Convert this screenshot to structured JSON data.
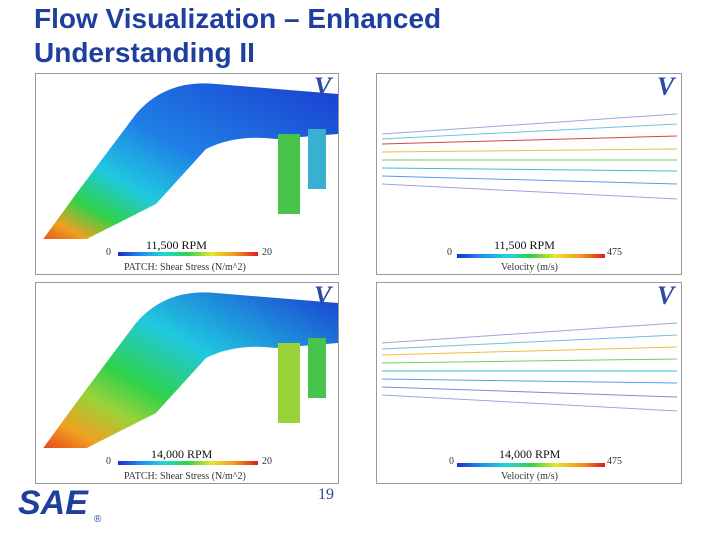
{
  "slide": {
    "title": "Flow Visualization – Enhanced Understanding II",
    "page_number": "19",
    "logo_text": "SAE"
  },
  "panels": [
    {
      "id": "shear-11500",
      "rpm": "11,500 RPM",
      "min": "0",
      "max": "20",
      "legend": "PATCH: Shear Stress (N/m^2)"
    },
    {
      "id": "velocity-11500",
      "rpm": "11,500 RPM",
      "min": "0",
      "max": "475",
      "legend": "Velocity (m/s)"
    },
    {
      "id": "shear-14000",
      "rpm": "14,000 RPM",
      "min": "0",
      "max": "20",
      "legend": "PATCH: Shear Stress (N/m^2)"
    },
    {
      "id": "velocity-14000",
      "rpm": "14,000 RPM",
      "min": "0",
      "max": "475",
      "legend": "Velocity (m/s)"
    }
  ],
  "colors": {
    "title": "#1f3f9e",
    "logo": "#1f3f9e"
  }
}
